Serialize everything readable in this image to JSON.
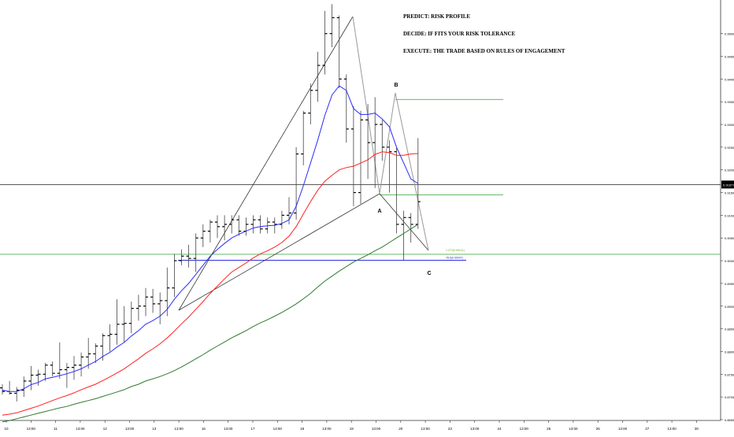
{
  "chart_data": {
    "type": "line",
    "annotations": [
      "PREDICT: RISK PROFILE",
      "DECIDE: IF FITS YOUR RISK TOLERANCE",
      "EXECUTE: THE TRADE BASED ON RULES OF ENGAGEMENT"
    ],
    "pattern_points": {
      "A": "A",
      "B": "B",
      "C": "C"
    },
    "level_labels": {
      "fib_127": "1.272(0.90141)",
      "fib_786": "78.6(0.90007)"
    },
    "price_label": "0.91677",
    "y_ticks": [
      "0.95000",
      "0.94500",
      "0.94000",
      "0.93500",
      "0.93000",
      "0.92500",
      "0.92000",
      "0.91500",
      "0.91000",
      "0.90500",
      "0.90000",
      "0.89500",
      "0.89000",
      "0.88500",
      "0.88000",
      "0.87500",
      "0.87000",
      "0.86500"
    ],
    "ylim": [
      0.8643,
      0.9574
    ],
    "x_ticks": [
      "10",
      "13:00",
      "11",
      "13:00",
      "12",
      "13:00",
      "13",
      "13:00",
      "16",
      "13:00",
      "17",
      "13:00",
      "18",
      "13:00",
      "19",
      "13:00",
      "20",
      "13:00",
      "23",
      "13:00",
      "24",
      "13:00",
      "25",
      "13:00",
      "26",
      "13:00",
      "27",
      "13:00",
      "30"
    ],
    "candles": [
      [
        0.872,
        0.8728,
        0.8705,
        0.8712
      ],
      [
        0.8712,
        0.8735,
        0.8705,
        0.8708
      ],
      [
        0.8708,
        0.8722,
        0.869,
        0.8715
      ],
      [
        0.8715,
        0.8745,
        0.87,
        0.8735
      ],
      [
        0.8735,
        0.8768,
        0.8715,
        0.8748
      ],
      [
        0.8748,
        0.876,
        0.8725,
        0.875
      ],
      [
        0.875,
        0.8775,
        0.8735,
        0.877
      ],
      [
        0.877,
        0.8778,
        0.8745,
        0.8752
      ],
      [
        0.8752,
        0.882,
        0.874,
        0.876
      ],
      [
        0.876,
        0.8775,
        0.872,
        0.8765
      ],
      [
        0.8765,
        0.879,
        0.8738,
        0.877
      ],
      [
        0.877,
        0.8798,
        0.8745,
        0.8788
      ],
      [
        0.8788,
        0.883,
        0.8762,
        0.8795
      ],
      [
        0.8795,
        0.8818,
        0.8775,
        0.8812
      ],
      [
        0.8812,
        0.884,
        0.878,
        0.8835
      ],
      [
        0.8835,
        0.886,
        0.88,
        0.8838
      ],
      [
        0.8838,
        0.8915,
        0.8815,
        0.886
      ],
      [
        0.886,
        0.89,
        0.882,
        0.8862
      ],
      [
        0.8862,
        0.891,
        0.884,
        0.8895
      ],
      [
        0.8895,
        0.8925,
        0.8868,
        0.89
      ],
      [
        0.89,
        0.894,
        0.8878,
        0.892
      ],
      [
        0.892,
        0.8938,
        0.8885,
        0.8905
      ],
      [
        0.8905,
        0.893,
        0.886,
        0.8912
      ],
      [
        0.8912,
        0.8985,
        0.8878,
        0.894
      ],
      [
        0.894,
        0.9015,
        0.892,
        0.9
      ],
      [
        0.9,
        0.9025,
        0.899,
        0.901
      ],
      [
        0.901,
        0.9035,
        0.8985,
        0.9005
      ],
      [
        0.9005,
        0.906,
        0.8975,
        0.905
      ],
      [
        0.905,
        0.908,
        0.903,
        0.9065
      ],
      [
        0.9065,
        0.909,
        0.904,
        0.9085
      ],
      [
        0.9085,
        0.91,
        0.905,
        0.9075
      ],
      [
        0.9075,
        0.91,
        0.9045,
        0.908
      ],
      [
        0.908,
        0.91,
        0.906,
        0.909
      ],
      [
        0.909,
        0.91,
        0.9055,
        0.9065
      ],
      [
        0.9065,
        0.9095,
        0.9055,
        0.908
      ],
      [
        0.908,
        0.91,
        0.906,
        0.909
      ],
      [
        0.909,
        0.91,
        0.906,
        0.907
      ],
      [
        0.907,
        0.9095,
        0.906,
        0.9085
      ],
      [
        0.9085,
        0.9095,
        0.906,
        0.908
      ],
      [
        0.908,
        0.911,
        0.907,
        0.91
      ],
      [
        0.91,
        0.914,
        0.908,
        0.9105
      ],
      [
        0.9105,
        0.925,
        0.909,
        0.9235
      ],
      [
        0.9235,
        0.933,
        0.921,
        0.9325
      ],
      [
        0.9325,
        0.939,
        0.93,
        0.9375
      ],
      [
        0.9375,
        0.946,
        0.935,
        0.943
      ],
      [
        0.943,
        0.955,
        0.941,
        0.95
      ],
      [
        0.95,
        0.9565,
        0.947,
        0.9535
      ],
      [
        0.9535,
        0.954,
        0.938,
        0.94
      ],
      [
        0.94,
        0.941,
        0.926,
        0.929
      ],
      [
        0.929,
        0.934,
        0.912,
        0.915
      ],
      [
        0.915,
        0.933,
        0.9125,
        0.931
      ],
      [
        0.931,
        0.9345,
        0.918,
        0.926
      ],
      [
        0.926,
        0.936,
        0.916,
        0.93
      ],
      [
        0.93,
        0.931,
        0.922,
        0.925
      ],
      [
        0.925,
        0.9265,
        0.915,
        0.924
      ],
      [
        0.924,
        0.925,
        0.906,
        0.908
      ],
      [
        0.908,
        0.911,
        0.9,
        0.9095
      ],
      [
        0.9095,
        0.9105,
        0.904,
        0.908
      ],
      [
        0.908,
        0.927,
        0.907,
        0.913
      ]
    ],
    "series": [
      {
        "color": "#2a2aff",
        "values": [
          0.8715,
          0.8712,
          0.8712,
          0.8718,
          0.8727,
          0.8732,
          0.874,
          0.8743,
          0.8747,
          0.8751,
          0.8756,
          0.8762,
          0.877,
          0.8778,
          0.8789,
          0.8798,
          0.881,
          0.882,
          0.8834,
          0.8846,
          0.886,
          0.8868,
          0.8878,
          0.8893,
          0.8915,
          0.8934,
          0.895,
          0.897,
          0.899,
          0.901,
          0.9025,
          0.9038,
          0.905,
          0.9058,
          0.9065,
          0.9072,
          0.9075,
          0.9077,
          0.9078,
          0.9082,
          0.909,
          0.912,
          0.9165,
          0.9215,
          0.9265,
          0.932,
          0.9365,
          0.9385,
          0.9375,
          0.9335,
          0.9322,
          0.9322,
          0.9325,
          0.9312,
          0.9295,
          0.925,
          0.9215,
          0.918,
          0.917
        ]
      },
      {
        "color": "#ff2020",
        "values": [
          0.866,
          0.8662,
          0.8665,
          0.867,
          0.8675,
          0.868,
          0.8686,
          0.8692,
          0.8698,
          0.8703,
          0.8709,
          0.8716,
          0.8722,
          0.8728,
          0.8736,
          0.8744,
          0.8753,
          0.8762,
          0.8773,
          0.8784,
          0.8796,
          0.8806,
          0.8817,
          0.883,
          0.8845,
          0.8861,
          0.8876,
          0.8893,
          0.891,
          0.8928,
          0.8944,
          0.896,
          0.8975,
          0.8985,
          0.8995,
          0.9006,
          0.9015,
          0.9022,
          0.903,
          0.904,
          0.9054,
          0.9075,
          0.9103,
          0.913,
          0.9155,
          0.9175,
          0.9188,
          0.92,
          0.9205,
          0.9208,
          0.9215,
          0.9222,
          0.9234,
          0.924,
          0.9238,
          0.9232,
          0.9232,
          0.9235,
          0.9236
        ]
      },
      {
        "color": "#2e7a2e",
        "values": [
          0.8645,
          0.8648,
          0.8652,
          0.8656,
          0.866,
          0.8664,
          0.8668,
          0.8672,
          0.8676,
          0.8679,
          0.8684,
          0.8688,
          0.8692,
          0.8696,
          0.8701,
          0.8706,
          0.8711,
          0.8716,
          0.8723,
          0.8728,
          0.8735,
          0.874,
          0.8745,
          0.8751,
          0.8758,
          0.8766,
          0.8775,
          0.8784,
          0.8793,
          0.8803,
          0.8812,
          0.8821,
          0.883,
          0.8838,
          0.8846,
          0.8855,
          0.8863,
          0.887,
          0.8878,
          0.8886,
          0.8895,
          0.8905,
          0.8916,
          0.8928,
          0.8942,
          0.8955,
          0.8966,
          0.8977,
          0.8987,
          0.8997,
          0.9005,
          0.9013,
          0.9022,
          0.903,
          0.904,
          0.905,
          0.906,
          0.907,
          0.908
        ]
      }
    ],
    "price_line": 0.91677,
    "green_top": 0.9355,
    "green_mid": 0.9145,
    "green_low": 0.90141,
    "blue_level": 0.90007,
    "grid": false
  }
}
